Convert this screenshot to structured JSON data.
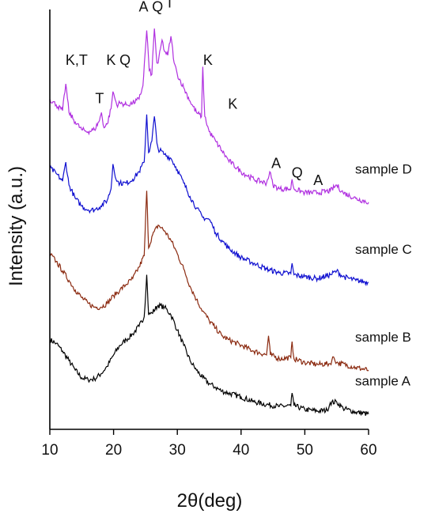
{
  "chart_data": {
    "type": "line",
    "title": "",
    "xlabel": "2θ(deg)",
    "ylabel": "Intensity (a.u.)",
    "xlim": [
      10,
      60
    ],
    "ylim": [
      0,
      11
    ],
    "xticks": [
      10,
      20,
      30,
      40,
      50,
      60
    ],
    "grid": false,
    "legend": "none",
    "series": [
      {
        "name": "sample A",
        "color": "#000000",
        "points": [
          [
            10,
            2.35
          ],
          [
            11,
            2.25
          ],
          [
            12,
            2.05
          ],
          [
            13,
            1.8
          ],
          [
            14,
            1.55
          ],
          [
            15,
            1.35
          ],
          [
            16,
            1.3
          ],
          [
            17,
            1.32
          ],
          [
            18,
            1.45
          ],
          [
            19,
            1.65
          ],
          [
            20,
            1.95
          ],
          [
            21,
            2.2
          ],
          [
            22,
            2.35
          ],
          [
            23,
            2.5
          ],
          [
            24,
            2.7
          ],
          [
            24.8,
            2.95
          ],
          [
            25.2,
            4.05
          ],
          [
            25.5,
            3.0
          ],
          [
            26,
            3.05
          ],
          [
            27,
            3.25
          ],
          [
            28,
            3.2
          ],
          [
            29,
            3.0
          ],
          [
            30,
            2.6
          ],
          [
            31,
            2.2
          ],
          [
            32,
            1.8
          ],
          [
            33,
            1.55
          ],
          [
            34,
            1.35
          ],
          [
            35,
            1.2
          ],
          [
            36,
            1.1
          ],
          [
            37,
            1.0
          ],
          [
            38,
            0.95
          ],
          [
            40,
            0.85
          ],
          [
            42,
            0.72
          ],
          [
            44,
            0.65
          ],
          [
            46,
            0.6
          ],
          [
            47.8,
            0.62
          ],
          [
            48,
            0.95
          ],
          [
            48.3,
            0.62
          ],
          [
            50,
            0.52
          ],
          [
            52,
            0.48
          ],
          [
            53.5,
            0.5
          ],
          [
            54,
            0.7
          ],
          [
            55,
            0.72
          ],
          [
            56,
            0.55
          ],
          [
            58,
            0.45
          ],
          [
            60,
            0.4
          ]
        ]
      },
      {
        "name": "sample B",
        "color": "#8b2a10",
        "points": [
          [
            10,
            4.6
          ],
          [
            11,
            4.4
          ],
          [
            12,
            4.15
          ],
          [
            13,
            3.9
          ],
          [
            14,
            3.65
          ],
          [
            15,
            3.45
          ],
          [
            16,
            3.3
          ],
          [
            17,
            3.2
          ],
          [
            18,
            3.2
          ],
          [
            19,
            3.3
          ],
          [
            20,
            3.5
          ],
          [
            21,
            3.65
          ],
          [
            22,
            3.8
          ],
          [
            23,
            3.95
          ],
          [
            24,
            4.25
          ],
          [
            24.8,
            4.55
          ],
          [
            25.2,
            6.25
          ],
          [
            25.5,
            4.75
          ],
          [
            26,
            5.05
          ],
          [
            27,
            5.35
          ],
          [
            28,
            5.2
          ],
          [
            29,
            4.95
          ],
          [
            30,
            4.6
          ],
          [
            31,
            4.2
          ],
          [
            32,
            3.75
          ],
          [
            33,
            3.4
          ],
          [
            34,
            3.1
          ],
          [
            35,
            2.85
          ],
          [
            36,
            2.65
          ],
          [
            37,
            2.45
          ],
          [
            38,
            2.35
          ],
          [
            40,
            2.2
          ],
          [
            42,
            2.05
          ],
          [
            44,
            1.95
          ],
          [
            44.3,
            2.45
          ],
          [
            44.6,
            1.95
          ],
          [
            46,
            1.85
          ],
          [
            47.8,
            1.88
          ],
          [
            48,
            2.3
          ],
          [
            48.3,
            1.85
          ],
          [
            50,
            1.75
          ],
          [
            52,
            1.7
          ],
          [
            54,
            1.72
          ],
          [
            54.5,
            1.9
          ],
          [
            55,
            1.75
          ],
          [
            58,
            1.62
          ],
          [
            60,
            1.55
          ]
        ]
      },
      {
        "name": "sample C",
        "color": "#1010d0",
        "points": [
          [
            10,
            6.85
          ],
          [
            11,
            6.7
          ],
          [
            12,
            6.5
          ],
          [
            12.5,
            7.0
          ],
          [
            13,
            6.4
          ],
          [
            14,
            6.05
          ],
          [
            15,
            5.85
          ],
          [
            16,
            5.75
          ],
          [
            17,
            5.75
          ],
          [
            18,
            5.85
          ],
          [
            19,
            6.0
          ],
          [
            19.6,
            6.3
          ],
          [
            19.9,
            6.95
          ],
          [
            20.5,
            6.5
          ],
          [
            21,
            6.45
          ],
          [
            22,
            6.45
          ],
          [
            23,
            6.55
          ],
          [
            24,
            6.75
          ],
          [
            24.8,
            7.0
          ],
          [
            25.2,
            8.25
          ],
          [
            25.5,
            7.25
          ],
          [
            26,
            7.55
          ],
          [
            26.4,
            8.2
          ],
          [
            26.8,
            7.5
          ],
          [
            27,
            7.35
          ],
          [
            28,
            7.2
          ],
          [
            29,
            7.1
          ],
          [
            30,
            6.8
          ],
          [
            31,
            6.45
          ],
          [
            32,
            6.1
          ],
          [
            33,
            5.8
          ],
          [
            34,
            5.55
          ],
          [
            35,
            5.5
          ],
          [
            35.5,
            5.35
          ],
          [
            36,
            5.15
          ],
          [
            37,
            4.95
          ],
          [
            38,
            4.75
          ],
          [
            40,
            4.5
          ],
          [
            42,
            4.35
          ],
          [
            44,
            4.2
          ],
          [
            46,
            4.1
          ],
          [
            47.8,
            4.08
          ],
          [
            48,
            4.35
          ],
          [
            48.3,
            4.05
          ],
          [
            50,
            4.0
          ],
          [
            52,
            3.95
          ],
          [
            54,
            4.05
          ],
          [
            55,
            4.15
          ],
          [
            56,
            4.0
          ],
          [
            58,
            3.9
          ],
          [
            60,
            3.85
          ]
        ]
      },
      {
        "name": "sample D",
        "color": "#b030e0",
        "points": [
          [
            10,
            8.65
          ],
          [
            11,
            8.5
          ],
          [
            12,
            8.35
          ],
          [
            12.5,
            9.05
          ],
          [
            13,
            8.3
          ],
          [
            14,
            8.05
          ],
          [
            15,
            7.85
          ],
          [
            16,
            7.8
          ],
          [
            17,
            7.85
          ],
          [
            17.8,
            8.1
          ],
          [
            18.1,
            8.3
          ],
          [
            18.5,
            7.9
          ],
          [
            19,
            8.0
          ],
          [
            19.6,
            8.4
          ],
          [
            19.9,
            8.85
          ],
          [
            20.5,
            8.5
          ],
          [
            21,
            8.55
          ],
          [
            22,
            8.5
          ],
          [
            23,
            8.55
          ],
          [
            24,
            8.65
          ],
          [
            24.6,
            9.0
          ],
          [
            25.2,
            10.45
          ],
          [
            25.6,
            9.4
          ],
          [
            26,
            9.3
          ],
          [
            26.4,
            10.5
          ],
          [
            26.8,
            9.6
          ],
          [
            27,
            9.6
          ],
          [
            27.6,
            10.2
          ],
          [
            28,
            9.9
          ],
          [
            28.5,
            9.8
          ],
          [
            29,
            10.3
          ],
          [
            29.5,
            9.6
          ],
          [
            30,
            9.3
          ],
          [
            31,
            8.95
          ],
          [
            32,
            8.6
          ],
          [
            33,
            8.3
          ],
          [
            33.8,
            8.2
          ],
          [
            34,
            9.5
          ],
          [
            34.3,
            8.2
          ],
          [
            35,
            7.8
          ],
          [
            36,
            7.55
          ],
          [
            37,
            7.3
          ],
          [
            38,
            7.05
          ],
          [
            40,
            6.75
          ],
          [
            42,
            6.55
          ],
          [
            44,
            6.45
          ],
          [
            44.5,
            6.75
          ],
          [
            45,
            6.4
          ],
          [
            46,
            6.3
          ],
          [
            47.8,
            6.3
          ],
          [
            48,
            6.55
          ],
          [
            48.3,
            6.3
          ],
          [
            50,
            6.2
          ],
          [
            52,
            6.2
          ],
          [
            54,
            6.25
          ],
          [
            55,
            6.4
          ],
          [
            56,
            6.2
          ],
          [
            58,
            6.05
          ],
          [
            60,
            5.95
          ]
        ]
      }
    ],
    "peak_labels": [
      {
        "text": "K,T",
        "x": 14.2,
        "y": 9.55
      },
      {
        "text": "T",
        "x": 17.8,
        "y": 8.55
      },
      {
        "text": "K",
        "x": 19.6,
        "y": 9.55
      },
      {
        "text": "Q",
        "x": 21.8,
        "y": 9.55
      },
      {
        "text": "A",
        "x": 24.7,
        "y": 10.95
      },
      {
        "text": "Q",
        "x": 26.9,
        "y": 10.95
      },
      {
        "text": "T",
        "x": 28.8,
        "y": 11.05
      },
      {
        "text": "K",
        "x": 34.8,
        "y": 9.55
      },
      {
        "text": "K",
        "x": 38.7,
        "y": 8.4
      },
      {
        "text": "A",
        "x": 45.5,
        "y": 6.85
      },
      {
        "text": "Q",
        "x": 48.8,
        "y": 6.6
      },
      {
        "text": "A",
        "x": 52.1,
        "y": 6.4
      }
    ]
  }
}
